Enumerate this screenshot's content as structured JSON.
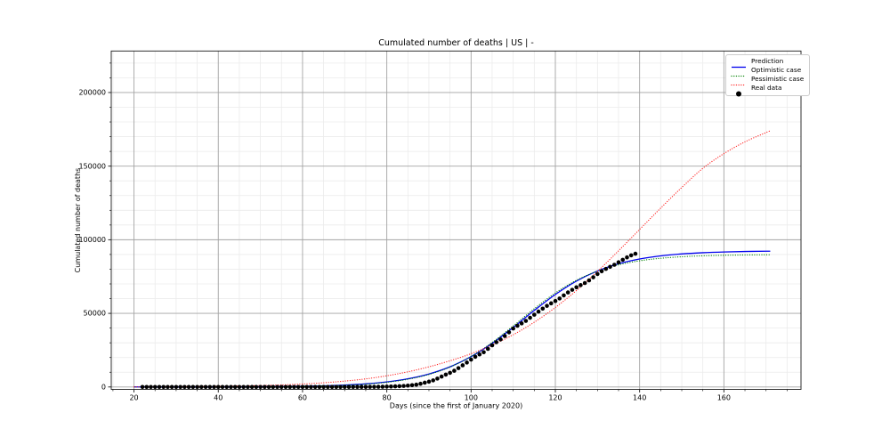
{
  "chart_data": {
    "type": "line",
    "title": "Cumulated number of deaths | US | -",
    "xlabel": "Days (since the first of January 2020)",
    "ylabel": "Cumulated number of deaths",
    "xlim": [
      14.6,
      178.3
    ],
    "ylim": [
      -1631,
      228200
    ],
    "x_ticks": [
      20,
      40,
      60,
      80,
      100,
      120,
      140,
      160
    ],
    "y_ticks": [
      0,
      50000,
      100000,
      150000,
      200000
    ],
    "x_minor_step": 5,
    "y_minor_step": 10000,
    "grid": {
      "major_color": "#a3a3a3",
      "minor_color": "#ebebeb",
      "spine_color": "#1a1a1a"
    },
    "legend_position": "upper right",
    "series": [
      {
        "name": "Prediction",
        "type": "line",
        "line": "solid",
        "color": "#0000ee",
        "x": [
          20,
          25,
          30,
          35,
          40,
          45,
          50,
          55,
          60,
          65,
          70,
          75,
          80,
          85,
          90,
          95,
          100,
          105,
          110,
          115,
          120,
          125,
          130,
          135,
          140,
          145,
          150,
          155,
          160,
          165,
          170,
          171
        ],
        "y": [
          9,
          15,
          24,
          40,
          66,
          108,
          178,
          294,
          483,
          793,
          1301,
          2125,
          3453,
          5559,
          8820,
          13695,
          20600,
          29675,
          40500,
          52000,
          62825,
          71900,
          78805,
          83680,
          86945,
          89045,
          90375,
          91200,
          91705,
          92020,
          92205,
          92235
        ]
      },
      {
        "name": "Optimistic case",
        "type": "line",
        "line": "dotted",
        "color": "#008000",
        "x": [
          20,
          25,
          30,
          35,
          40,
          45,
          50,
          55,
          60,
          65,
          70,
          75,
          80,
          85,
          90,
          95,
          100,
          105,
          110,
          115,
          120,
          125,
          130,
          135,
          140,
          145,
          150,
          155,
          160,
          165,
          170,
          171
        ],
        "y": [
          6,
          10,
          17,
          29,
          49,
          83,
          141,
          238,
          402,
          677,
          1138,
          1906,
          3180,
          5245,
          8523,
          13525,
          20712,
          30212,
          41460,
          53175,
          63850,
          72445,
          78705,
          82965,
          85700,
          87405,
          88445,
          89075,
          89450,
          89675,
          89805,
          89827
        ]
      },
      {
        "name": "Pessimistic case",
        "type": "line",
        "line": "dotted",
        "color": "#ff2020",
        "x": [
          20,
          25,
          30,
          35,
          40,
          45,
          50,
          55,
          60,
          65,
          70,
          75,
          80,
          85,
          90,
          95,
          100,
          105,
          110,
          115,
          120,
          125,
          130,
          135,
          140,
          145,
          150,
          155,
          160,
          165,
          170,
          171
        ],
        "y": [
          60,
          100,
          170,
          270,
          420,
          640,
          950,
          1400,
          2000,
          2850,
          4000,
          5500,
          7600,
          10300,
          13700,
          17800,
          22600,
          28500,
          35500,
          44000,
          54000,
          65500,
          78500,
          92500,
          107000,
          121500,
          135500,
          148500,
          158500,
          166500,
          172800,
          174000
        ]
      },
      {
        "name": "Real data",
        "type": "scatter",
        "marker": "circle",
        "color": "#000000",
        "x_start": 22,
        "y": [
          0,
          0,
          0,
          0,
          0,
          0,
          0,
          0,
          0,
          0,
          0,
          0,
          0,
          0,
          0,
          0,
          0,
          0,
          0,
          0,
          0,
          0,
          0,
          0,
          0,
          0,
          0,
          0,
          0,
          0,
          0,
          0,
          0,
          0,
          0,
          0,
          0,
          0,
          1,
          1,
          6,
          7,
          11,
          12,
          14,
          17,
          21,
          22,
          26,
          30,
          38,
          41,
          48,
          58,
          73,
          95,
          121,
          171,
          239,
          309,
          417,
          552,
          706,
          942,
          1209,
          1581,
          2174,
          2921,
          3603,
          4476,
          5702,
          7087,
          8407,
          9619,
          11000,
          12800,
          14700,
          16600,
          18600,
          20500,
          22100,
          23600,
          25900,
          28300,
          30400,
          32300,
          34600,
          37100,
          39700,
          41600,
          43200,
          44900,
          47000,
          49100,
          51200,
          53200,
          55100,
          56800,
          58400,
          60100,
          62200,
          64200,
          66000,
          67700,
          69200,
          70600,
          72400,
          74500,
          76700,
          78600,
          80200,
          81600,
          83000,
          84700,
          86400,
          88000,
          89400,
          90500
        ]
      }
    ]
  }
}
